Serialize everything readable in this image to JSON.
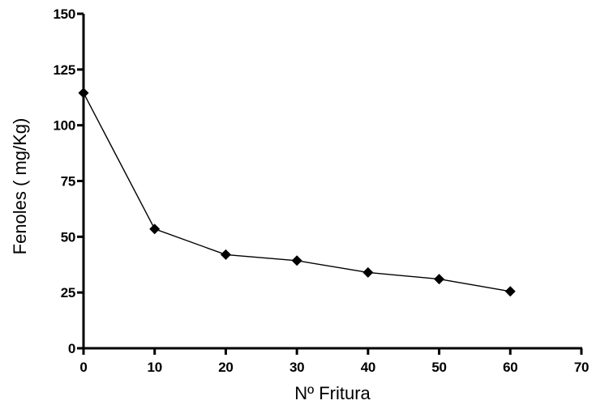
{
  "chart_data": {
    "type": "line",
    "title": "",
    "xlabel": "Nº Fritura",
    "ylabel": "Fenoles ( mg/Kg)",
    "xlim": [
      0,
      70
    ],
    "ylim": [
      0,
      150
    ],
    "xticks": [
      0,
      10,
      20,
      30,
      40,
      50,
      60,
      70
    ],
    "yticks": [
      0,
      25,
      50,
      75,
      100,
      125,
      150
    ],
    "xtick_labels": [
      "0",
      "10",
      "20",
      "30",
      "40",
      "50",
      "60",
      "70"
    ],
    "ytick_labels": [
      "0",
      "25",
      "50",
      "75",
      "100",
      "125",
      "150"
    ],
    "grid": false,
    "legend": "none",
    "series": [
      {
        "x": [
          0,
          10,
          20,
          30,
          40,
          50,
          60
        ],
        "values": [
          114.5,
          53.5,
          42,
          39.3,
          34,
          31,
          25.5
        ],
        "marker": "diamond",
        "color": "#000000"
      }
    ]
  }
}
